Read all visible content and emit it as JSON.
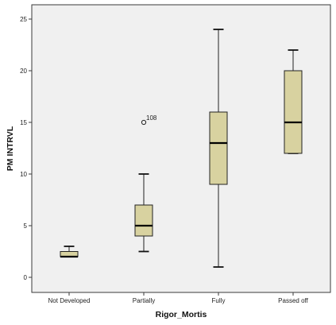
{
  "chart_data": {
    "type": "boxplot",
    "title": "",
    "xlabel": "Rigor_Mortis",
    "ylabel": "PM INTRVL",
    "ylim": [
      -1,
      26.5
    ],
    "yticks": [
      0,
      5,
      10,
      15,
      20,
      25
    ],
    "grid": false,
    "colors": {
      "plot_bg": "#f0f0f0",
      "box_fill": "#d8d2a0",
      "frame": "#3a3a3a"
    },
    "categories": [
      "Not Developed",
      "Partially",
      "Fully",
      "Passed off"
    ],
    "boxes": [
      {
        "category": "Not Developed",
        "min": 2,
        "q1": 2,
        "median": 2,
        "q3": 2.5,
        "max": 3
      },
      {
        "category": "Partially",
        "min": 2.5,
        "q1": 4,
        "median": 5,
        "q3": 7,
        "max": 10
      },
      {
        "category": "Fully",
        "min": 1,
        "q1": 9,
        "median": 13,
        "q3": 16,
        "max": 24
      },
      {
        "category": "Passed off",
        "min": 12,
        "q1": 12,
        "median": 15,
        "q3": 20,
        "max": 22
      }
    ],
    "outliers": [
      {
        "category": "Partially",
        "value": 15,
        "label": "108"
      }
    ]
  }
}
